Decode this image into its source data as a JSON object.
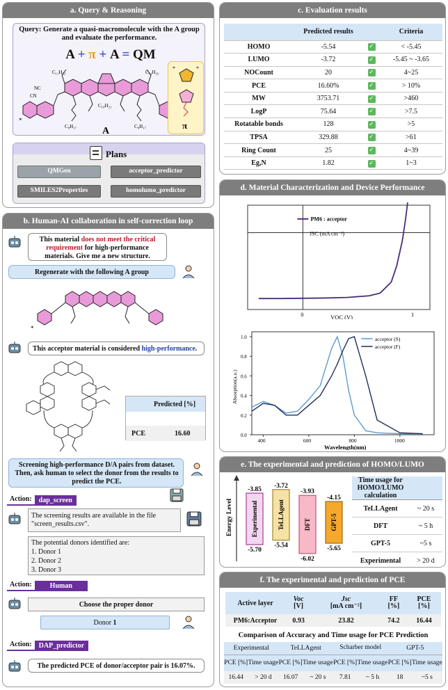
{
  "panel_a": {
    "title": "a. Query & Reasoning",
    "query_label": "Query:",
    "query_text": "Generate a quasi-macromolecule with the A group and evaluate the performance.",
    "equation": {
      "a1": "A",
      "plus1": "+",
      "pi": "π",
      "plus2": "+",
      "a2": "A",
      "eq": "=",
      "qm": "QM"
    },
    "mol_labels": {
      "a": "A",
      "pi": "π",
      "c11_left": "C₁₁H₂₃",
      "c11_right": "C₁₁H₂₃",
      "cn_left": "CN",
      "cn_right": "CN",
      "nc_left": "NC",
      "nc_right": "NC",
      "c10": "C₁₀H₂₁",
      "c8a": "C₈H₁₇",
      "c8b": "C₈H₁₇",
      "c10b": "C₁₀H₂₁",
      "s": "S",
      "n": "N",
      "star": "*",
      "o": "O"
    },
    "plans_title": "Plans",
    "plans": [
      "QMGen",
      "acceptor_predictor",
      "SMILES2Properties",
      "homolumo_predictor"
    ]
  },
  "panel_b": {
    "title": "b. Human-AI collaboration in self-correction loop",
    "msg1_a": "This material ",
    "msg1_red": "does not meet the critical requirement",
    "msg1_b": " for high-performance materials. Give me a new structure.",
    "msg2": "Regenerate with the following A group",
    "msg3_a": "This acceptor material is considered ",
    "msg3_blue": "high-performance",
    "msg3_b": ".",
    "pred_header": "Predicted [%]",
    "pce_label": "PCE",
    "pce_value": "16.60",
    "msg4": "Screening high-performance D/A pairs from dataset. Then, ask human to select the donor from the results to predict the PCE.",
    "action_label": "Action:",
    "action1": "dap_screen",
    "screen_msg": "The screening results are available in the file \"screen_results.csv\".",
    "donors_intro": "The potential donors identified are:",
    "donors": [
      "1. Donor 1",
      "2. Donor 2",
      "3. Donor 3"
    ],
    "action2": "Human",
    "choose_msg": "Choose the proper donor",
    "donor_pick_a": "Donor ",
    "donor_pick_b": "1",
    "action3": "DAP_predictor",
    "final_msg": "The predicted PCE of donor/acceptor pair is 16.07%."
  },
  "panel_c": {
    "title": "c. Evaluation results",
    "headers": [
      "",
      "Predicted results",
      "",
      "Criteria"
    ],
    "rows": [
      {
        "name": "HOMO",
        "value": "-5.54",
        "criteria": "< -5.45"
      },
      {
        "name": "LUMO",
        "value": "-3.72",
        "criteria": "-5.45 ~ -3.65"
      },
      {
        "name": "NOCount",
        "value": "20",
        "criteria": "4~25"
      },
      {
        "name": "PCE",
        "value": "16.60%",
        "criteria": "> 10%"
      },
      {
        "name": "MW",
        "value": "3753.71",
        "criteria": ">460"
      },
      {
        "name": "LogP",
        "value": "75.64",
        "criteria": ">7.5"
      },
      {
        "name": "Rotatable bonds",
        "value": "128",
        "criteria": ">5"
      },
      {
        "name": "TPSA",
        "value": "329.88",
        "criteria": ">61"
      },
      {
        "name": "Ring Count",
        "value": "25",
        "criteria": "4~39"
      },
      {
        "name": "Eg,N",
        "value": "1.82",
        "criteria": "1~3"
      }
    ]
  },
  "panel_d": {
    "title": "d. Material Characterization and Device Performance",
    "jv": {
      "ylabel": "JSC (mA cm⁻²)",
      "xlabel": "VOC (V)",
      "legend": "PM6 : acceptor",
      "ticks_x": [
        "0",
        "1"
      ]
    },
    "abs": {
      "ylabel": "Absorption(a.u.)",
      "xlabel": "Wavelength(nm)",
      "legend_s": "acceptor (S)",
      "legend_f": "acceptor (F)",
      "ticks_x": [
        "400",
        "600",
        "800",
        "1000"
      ],
      "ticks_y": [
        "0.0",
        "0.2",
        "0.4",
        "0.6",
        "0.8",
        "1.0"
      ]
    }
  },
  "chart_data": [
    {
      "type": "line",
      "x": [
        -0.4,
        -0.2,
        0,
        0.2,
        0.4,
        0.6,
        0.7,
        0.8,
        0.85,
        0.9,
        0.93,
        0.96
      ],
      "series": [
        {
          "name": "PM6 : acceptor",
          "values": [
            -24,
            -24,
            -23.9,
            -23.8,
            -23.6,
            -23,
            -22,
            -18,
            -12,
            -3,
            5,
            15
          ]
        }
      ],
      "xlabel": "VOC (V)",
      "ylabel": "JSC (mA cm⁻²)"
    },
    {
      "type": "line",
      "x": [
        350,
        400,
        450,
        500,
        550,
        600,
        650,
        700,
        725,
        750,
        775,
        800,
        850,
        900,
        1000,
        1100
      ],
      "series": [
        {
          "name": "acceptor (S)",
          "values": [
            0.28,
            0.34,
            0.3,
            0.22,
            0.24,
            0.36,
            0.5,
            0.88,
            1.0,
            0.8,
            0.45,
            0.2,
            0.04,
            0.02,
            0.01,
            0.01
          ]
        },
        {
          "name": "acceptor (F)",
          "values": [
            0.24,
            0.32,
            0.3,
            0.2,
            0.2,
            0.3,
            0.4,
            0.6,
            0.72,
            0.86,
            0.98,
            1.0,
            0.6,
            0.15,
            0.02,
            0.01
          ]
        }
      ],
      "xlabel": "Wavelength(nm)",
      "ylabel": "Absorption(a.u.)",
      "xlim": [
        350,
        1150
      ],
      "ylim": [
        0,
        1.05
      ]
    }
  ],
  "panel_e": {
    "title": "e. The experimental and prediction of HOMO/LUMO",
    "axis_label": "Energy Level",
    "bars": [
      {
        "name": "Experimental",
        "lumo": "-3.85",
        "homo": "-5.70",
        "color": "#f3d6ef",
        "border": "#a03c98",
        "l": -3.85,
        "h": -5.7
      },
      {
        "name": "TeLLAgent",
        "lumo": "-3.72",
        "homo": "-5.54",
        "color": "#f7e2a6",
        "border": "#a08a2a",
        "l": -3.72,
        "h": -5.54
      },
      {
        "name": "DFT",
        "lumo": "-3.93",
        "homo": "-6.02",
        "color": "#f7b8c7",
        "border": "#c25572",
        "l": -3.93,
        "h": -6.02
      },
      {
        "name": "GPT-5",
        "lumo": "-4.15",
        "homo": "-5.65",
        "color": "#f5a82b",
        "border": "#9a6a10",
        "l": -4.15,
        "h": -5.65
      }
    ],
    "time_header": "Time usage for HOMO/LUMO calculation",
    "times": [
      {
        "name": "TeLLAgent",
        "value": "~ 20 s"
      },
      {
        "name": "DFT",
        "value": "~ 5 h"
      },
      {
        "name": "GPT-5",
        "value": "~5 s"
      },
      {
        "name": "Experimental",
        "value": "> 20 d"
      }
    ]
  },
  "panel_f": {
    "title": "f. The experimental and prediction of PCE",
    "headers": [
      "Active layer",
      "Voc",
      "[V]",
      "Jsc",
      "[mA cm⁻²]",
      "FF",
      "[%]",
      "PCE",
      "[%]"
    ],
    "row": [
      "PM6:Acceptor",
      "0.93",
      "23.82",
      "74.2",
      "16.44"
    ],
    "compare_title": "Comparison of Accuracy and Time usage for PCE Prediction",
    "groups": [
      "Experimental",
      "TeLLAgent",
      "Scharber model",
      "GPT-5"
    ],
    "sub": [
      "PCE [%]",
      "Time usage"
    ],
    "values": [
      "16.44",
      "> 20 d",
      "16.07",
      "~ 20 s",
      "7.81",
      "~ 5 h",
      "18",
      "~5 s"
    ]
  }
}
